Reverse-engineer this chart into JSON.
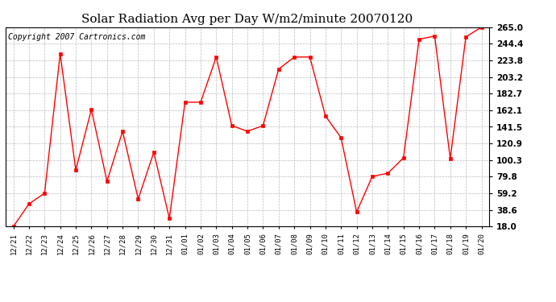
{
  "title": "Solar Radiation Avg per Day W/m2/minute 20070120",
  "copyright": "Copyright 2007 Cartronics.com",
  "x_labels": [
    "12/21",
    "12/22",
    "12/23",
    "12/24",
    "12/25",
    "12/26",
    "12/27",
    "12/28",
    "12/29",
    "12/30",
    "12/31",
    "01/01",
    "01/02",
    "01/03",
    "01/04",
    "01/05",
    "01/06",
    "01/07",
    "01/08",
    "01/09",
    "01/10",
    "01/11",
    "01/12",
    "01/13",
    "01/14",
    "01/15",
    "01/16",
    "01/17",
    "01/18",
    "01/19",
    "01/20"
  ],
  "y_values": [
    18.0,
    46.0,
    59.2,
    232.0,
    88.0,
    163.0,
    74.0,
    136.0,
    52.0,
    110.0,
    28.0,
    172.0,
    172.0,
    228.0,
    143.0,
    136.0,
    143.0,
    213.0,
    228.0,
    228.0,
    155.0,
    128.0,
    36.0,
    80.0,
    84.0,
    103.0,
    250.0,
    254.0,
    102.0,
    253.0,
    265.0
  ],
  "y_ticks": [
    18.0,
    38.6,
    59.2,
    79.8,
    100.3,
    120.9,
    141.5,
    162.1,
    182.7,
    203.2,
    223.8,
    244.4,
    265.0
  ],
  "y_tick_labels": [
    "18.0",
    "38.6",
    "59.2",
    "79.8",
    "100.3",
    "120.9",
    "141.5",
    "162.1",
    "182.7",
    "203.2",
    "223.8",
    "244.4",
    "265.0"
  ],
  "y_min": 18.0,
  "y_max": 265.0,
  "line_color": "red",
  "marker": "s",
  "marker_size": 2.5,
  "background_color": "#ffffff",
  "plot_bg_color": "#ffffff",
  "grid_color": "#bbbbbb",
  "title_fontsize": 11,
  "tick_fontsize": 7.5,
  "xtick_fontsize": 6.5,
  "copyright_fontsize": 7
}
